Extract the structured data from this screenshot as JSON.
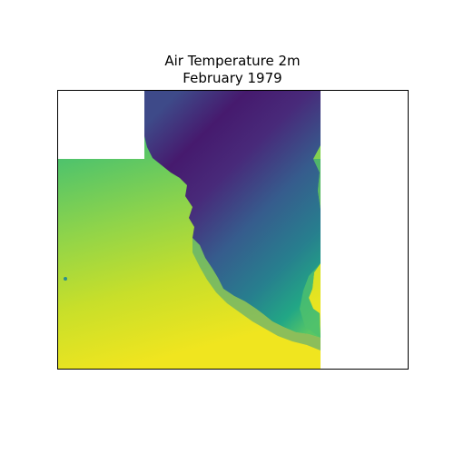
{
  "figure": {
    "title_line1": "Air Temperature 2m",
    "title_line2": "February 1979"
  },
  "map": {
    "variable": "2m air temperature",
    "colormap": "viridis",
    "colormap_stops": [
      "#440154",
      "#472d7b",
      "#3b528b",
      "#2c728e",
      "#21908d",
      "#27ad81",
      "#5dc963",
      "#aadc32",
      "#fde725"
    ],
    "grid": false,
    "axis_ticks": false,
    "colorbar": false,
    "missing_data_color": "#ffffff",
    "ocean_gradient_note": "warm (yellow) in the south grading to green/teal toward the north",
    "land_gradient_note": "cold (purple) in the northern interior grading to teal/green along the southern coast"
  }
}
